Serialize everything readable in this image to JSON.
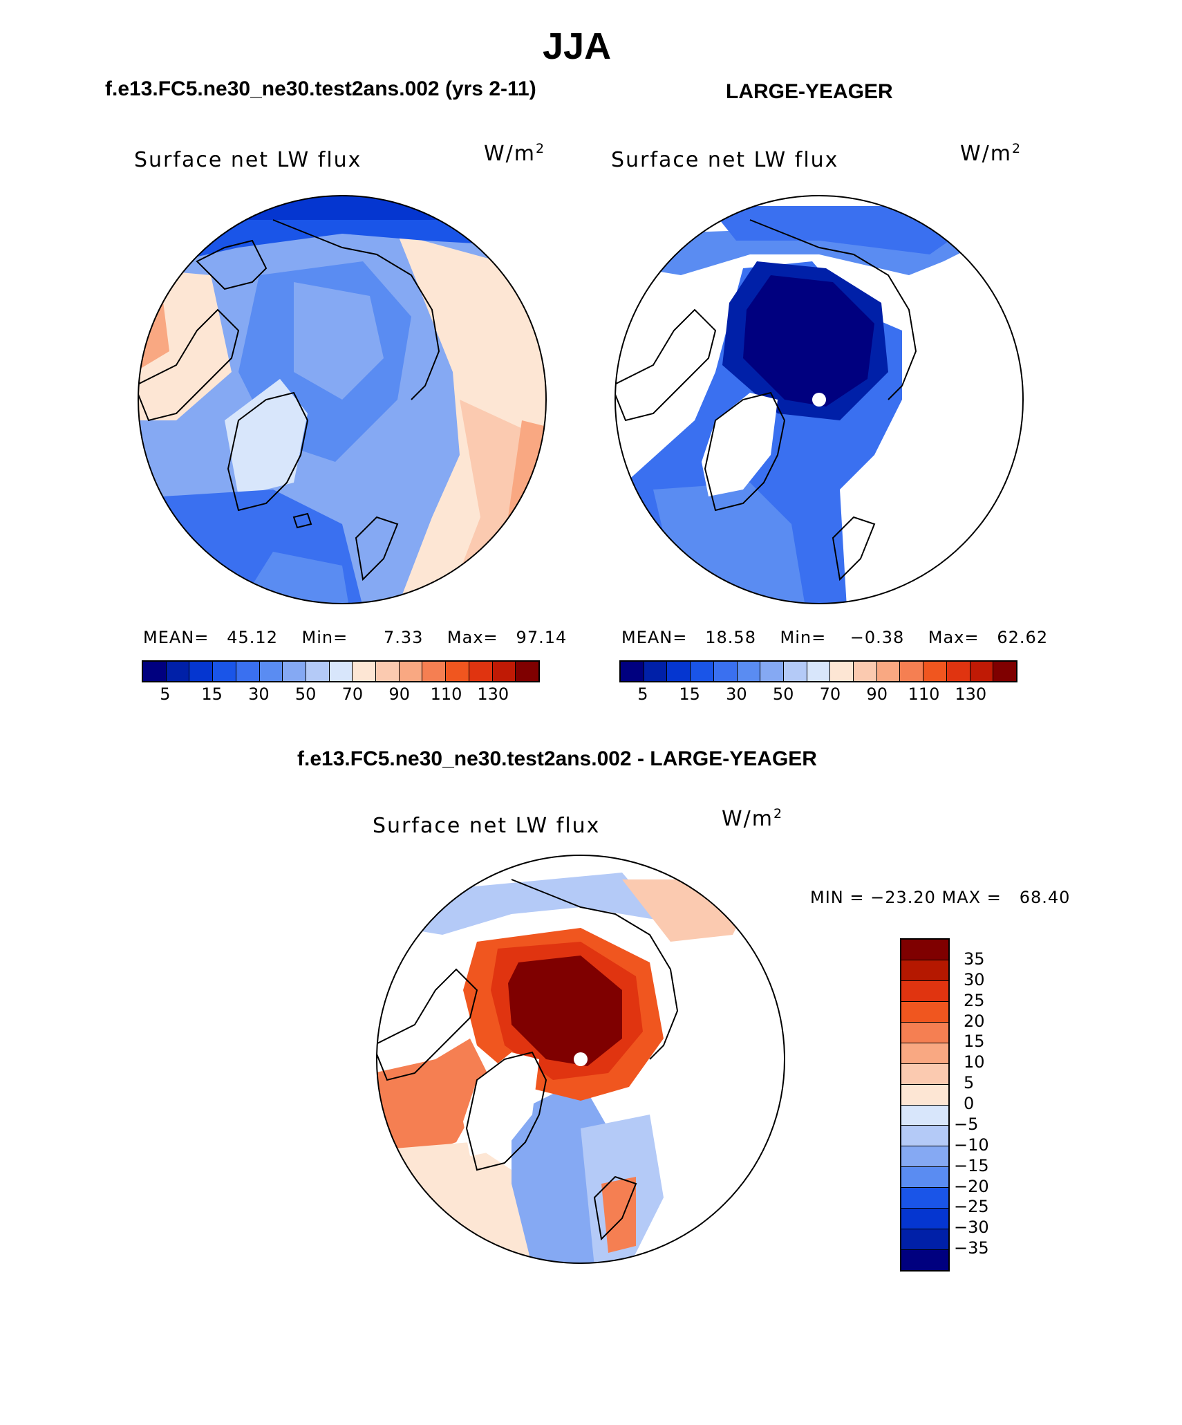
{
  "title": "JJA",
  "panels": [
    {
      "case_title": "f.e13.FC5.ne30_ne30.test2ans.002 (yrs 2-11)",
      "plot_label": "Surface net LW flux",
      "units": "W/m",
      "units_sup": "2",
      "stats": {
        "mean_label": "MEAN=",
        "mean": "45.12",
        "min_label": "Min=",
        "min": "7.33",
        "max_label": "Max=",
        "max": "97.14"
      }
    },
    {
      "case_title": "LARGE-YEAGER",
      "plot_label": "Surface net LW flux",
      "units": "W/m",
      "units_sup": "2",
      "stats": {
        "mean_label": "MEAN=",
        "mean": "18.58",
        "min_label": "Min=",
        "min": "−0.38",
        "max_label": "Max=",
        "max": "62.62"
      }
    }
  ],
  "diff_panel": {
    "case_title": "f.e13.FC5.ne30_ne30.test2ans.002 - LARGE-YEAGER",
    "plot_label": "Surface net LW flux",
    "units": "W/m",
    "units_sup": "2",
    "minmax": "MIN = −23.20 MAX =   68.40"
  },
  "chart_data": [
    {
      "type": "heatmap",
      "title": "Surface net LW flux",
      "subtitle": "f.e13.FC5.ne30_ne30.test2ans.002 (yrs 2-11)",
      "units": "W/m2",
      "mean": 45.12,
      "min": 7.33,
      "max": 97.14,
      "colorbar_ticks": [
        "5",
        "15",
        "30",
        "50",
        "70",
        "90",
        "110",
        "130"
      ],
      "colorbar_colors": [
        "#00007f",
        "#0020a8",
        "#0536d0",
        "#1a55e8",
        "#3a70f0",
        "#5a8cf2",
        "#85a9f3",
        "#b4caf7",
        "#d8e6fb",
        "#fde6d4",
        "#fbcab0",
        "#f9a882",
        "#f57f52",
        "#f0561f",
        "#e03410",
        "#c01a05",
        "#7f0000"
      ]
    },
    {
      "type": "heatmap",
      "title": "Surface net LW flux",
      "subtitle": "LARGE-YEAGER",
      "units": "W/m2",
      "mean": 18.58,
      "min": -0.38,
      "max": 62.62,
      "colorbar_ticks": [
        "5",
        "15",
        "30",
        "50",
        "70",
        "90",
        "110",
        "130"
      ],
      "colorbar_colors": [
        "#00007f",
        "#0020a8",
        "#0536d0",
        "#1a55e8",
        "#3a70f0",
        "#5a8cf2",
        "#85a9f3",
        "#b4caf7",
        "#d8e6fb",
        "#fde6d4",
        "#fbcab0",
        "#f9a882",
        "#f57f52",
        "#f0561f",
        "#e03410",
        "#c01a05",
        "#7f0000"
      ]
    },
    {
      "type": "heatmap",
      "title": "Surface net LW flux",
      "subtitle": "f.e13.FC5.ne30_ne30.test2ans.002 - LARGE-YEAGER",
      "units": "W/m2",
      "min": -23.2,
      "max": 68.4,
      "colorbar_ticks": [
        "35",
        "30",
        "25",
        "20",
        "15",
        "10",
        "5",
        "0",
        "−5",
        "−10",
        "−15",
        "−20",
        "−25",
        "−30",
        "−35"
      ],
      "colorbar_colors": [
        "#7f0000",
        "#b51800",
        "#e03410",
        "#f0561f",
        "#f57f52",
        "#f9a882",
        "#fbcab0",
        "#fde6d4",
        "#d8e6fb",
        "#b4caf7",
        "#85a9f3",
        "#5a8cf2",
        "#1a55e8",
        "#0536d0",
        "#0020a8",
        "#00007f"
      ]
    }
  ]
}
